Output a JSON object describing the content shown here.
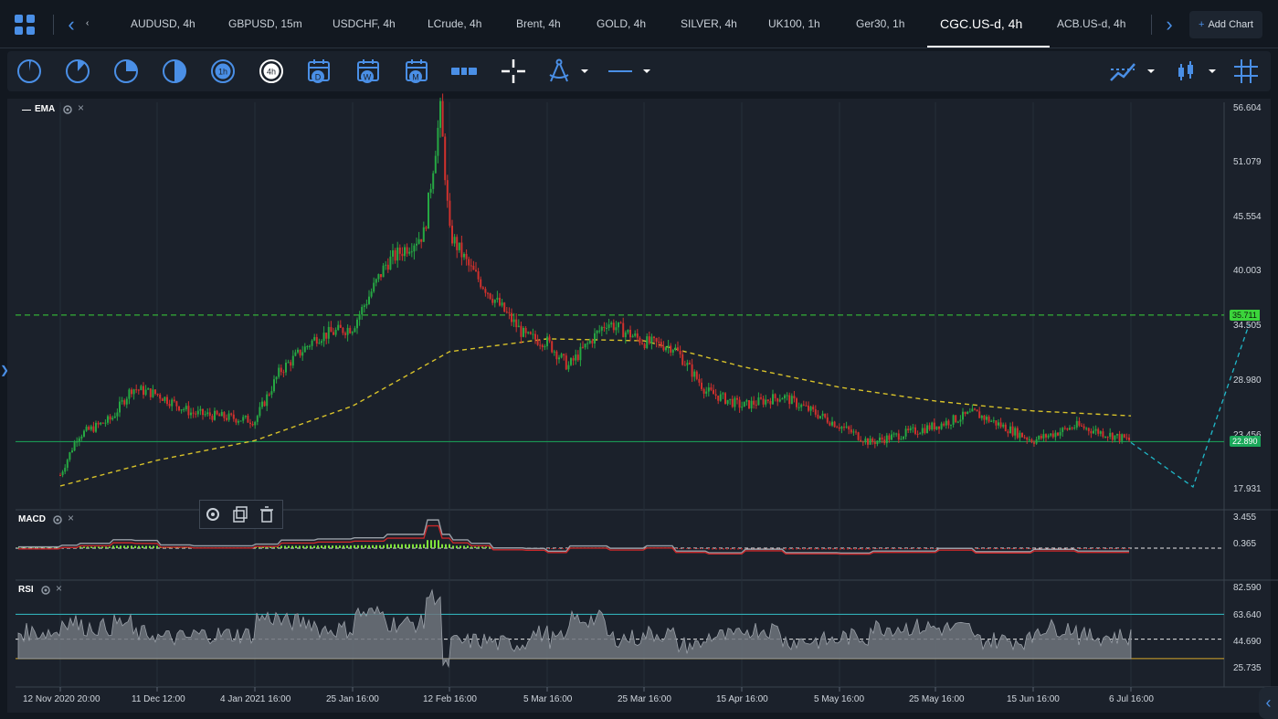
{
  "tabs": [
    {
      "label": "‹"
    },
    {
      "label": "AUDUSD, 4h"
    },
    {
      "label": "GBPUSD, 15m"
    },
    {
      "label": "USDCHF, 4h"
    },
    {
      "label": "LCrude, 4h"
    },
    {
      "label": "Brent, 4h"
    },
    {
      "label": "GOLD, 4h"
    },
    {
      "label": "SILVER, 4h"
    },
    {
      "label": "UK100, 1h"
    },
    {
      "label": "Ger30, 1h"
    },
    {
      "label": "CGC.US-d, 4h"
    },
    {
      "label": "ACB.US-d, 4h"
    }
  ],
  "add_chart": {
    "plus": "+",
    "label": "Add Chart"
  },
  "toolbar": {
    "timeframe_icons": [
      "1m-icon",
      "5m-icon",
      "15m-icon",
      "30m-icon",
      "1h-icon",
      "4h-icon",
      "day-calendar-icon",
      "week-calendar-icon",
      "month-calendar-icon"
    ],
    "tf_1h": "1h",
    "tf_4h": "4h",
    "tf_d": "D",
    "tf_w": "W",
    "tf_m": "M"
  },
  "main_pane": {
    "indicator": "EMA",
    "price_ticks": [
      "56.604",
      "51.079",
      "45.554",
      "40.003",
      "34.505",
      "28.980",
      "23.456",
      "17.931"
    ],
    "resistance_price": "35.711",
    "support_price": "22.890"
  },
  "macd_pane": {
    "indicator": "MACD",
    "ticks": [
      "3.455",
      "0.365"
    ]
  },
  "rsi_pane": {
    "indicator": "RSI",
    "ticks": [
      "82.590",
      "63.640",
      "44.690",
      "25.735"
    ]
  },
  "time_axis": [
    "12 Nov 2020 20:00",
    "11 Dec 12:00",
    "4 Jan 2021 16:00",
    "25 Jan 16:00",
    "12 Feb 16:00",
    "5 Mar 16:00",
    "25 Mar 16:00",
    "15 Apr 16:00",
    "5 May 16:00",
    "25 May 16:00",
    "15 Jun 16:00",
    "6 Jul 16:00"
  ],
  "colors": {
    "up": "#26a843",
    "down": "#d0312d",
    "accent": "#4a8fe6",
    "resistance": "#3bd43b",
    "support": "#1aa85a",
    "ema": "#d8c22a",
    "projection": "#1fb8c8",
    "rsi_upper": "#33c0c8",
    "rsi_lower": "#d6a72a"
  },
  "chart_data": {
    "type": "candlestick",
    "symbol": "CGC.US-d",
    "timeframe": "4h",
    "ylim": [
      17.931,
      56.604
    ],
    "price_path": [
      {
        "x": "12 Nov 2020 20:00",
        "y": 19.5
      },
      {
        "x": "18 Nov 2020",
        "y": 23.5
      },
      {
        "x": "28 Nov 2020",
        "y": 25.2
      },
      {
        "x": "4 Dec 2020",
        "y": 28.3
      },
      {
        "x": "11 Dec 12:00",
        "y": 27.7
      },
      {
        "x": "20 Dec 2020",
        "y": 25.8
      },
      {
        "x": "4 Jan 2021 16:00",
        "y": 25.0
      },
      {
        "x": "10 Jan 2021",
        "y": 30.0
      },
      {
        "x": "18 Jan 2021",
        "y": 33.5
      },
      {
        "x": "25 Jan 16:00",
        "y": 34.5
      },
      {
        "x": "1 Feb 2021",
        "y": 41.0
      },
      {
        "x": "8 Feb 2021",
        "y": 44.0
      },
      {
        "x": "11 Feb 2021",
        "y": 56.5
      },
      {
        "x": "12 Feb 16:00",
        "y": 44.0
      },
      {
        "x": "17 Feb 2021",
        "y": 40.5
      },
      {
        "x": "22 Feb 2021",
        "y": 37.5
      },
      {
        "x": "1 Mar 2021",
        "y": 33.5
      },
      {
        "x": "5 Mar 16:00",
        "y": 33.0
      },
      {
        "x": "10 Mar 2021",
        "y": 30.5
      },
      {
        "x": "18 Mar 2021",
        "y": 35.0
      },
      {
        "x": "25 Mar 16:00",
        "y": 33.0
      },
      {
        "x": "1 Apr 2021",
        "y": 32.5
      },
      {
        "x": "8 Apr 2021",
        "y": 28.0
      },
      {
        "x": "15 Apr 16:00",
        "y": 26.5
      },
      {
        "x": "24 Apr 2021",
        "y": 27.5
      },
      {
        "x": "5 May 16:00",
        "y": 24.5
      },
      {
        "x": "12 May 2021",
        "y": 22.8
      },
      {
        "x": "25 May 16:00",
        "y": 24.5
      },
      {
        "x": "3 Jun 2021",
        "y": 25.8
      },
      {
        "x": "15 Jun 16:00",
        "y": 23.0
      },
      {
        "x": "25 Jun 2021",
        "y": 24.5
      },
      {
        "x": "6 Jul 16:00",
        "y": 23.0
      }
    ],
    "ema_path": [
      {
        "x": "12 Nov 2020 20:00",
        "y": 18.4
      },
      {
        "x": "11 Dec 12:00",
        "y": 21.0
      },
      {
        "x": "4 Jan 2021 16:00",
        "y": 23.0
      },
      {
        "x": "25 Jan 16:00",
        "y": 26.5
      },
      {
        "x": "12 Feb 16:00",
        "y": 32.0
      },
      {
        "x": "5 Mar 16:00",
        "y": 33.3
      },
      {
        "x": "25 Mar 16:00",
        "y": 33.1
      },
      {
        "x": "15 Apr 16:00",
        "y": 30.5
      },
      {
        "x": "5 May 16:00",
        "y": 28.4
      },
      {
        "x": "25 May 16:00",
        "y": 27.0
      },
      {
        "x": "15 Jun 16:00",
        "y": 26.0
      },
      {
        "x": "6 Jul 16:00",
        "y": 25.5
      }
    ],
    "horizontal_levels": [
      {
        "name": "resistance",
        "y": 35.711,
        "style": "dashed"
      },
      {
        "name": "support",
        "y": 22.89,
        "style": "solid"
      }
    ],
    "projection": [
      {
        "x": "6 Jul 16:00",
        "y": 22.8
      },
      {
        "x": "20 Jul 2021",
        "y": 18.3
      },
      {
        "x": "1 Aug 2021",
        "y": 34.7
      }
    ],
    "rsi_levels": [
      63.64,
      44.69,
      30.0
    ],
    "macd_zero": 0.365,
    "grid": true
  }
}
